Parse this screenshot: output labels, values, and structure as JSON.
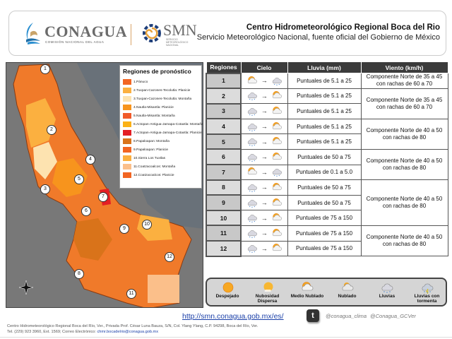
{
  "header": {
    "conagua_logo": "CONAGUA",
    "conagua_sub": "COMISIÓN NACIONAL DEL AGUA",
    "smn_logo": "SMN",
    "smn_sub": "SERVICIO METEOROLÓGICO NACIONAL",
    "title": "Centro Hidrometeorológico Regional Boca del Rio",
    "subtitle": "Servicio Meteorológico Nacional, fuente oficial del Gobierno de México"
  },
  "map_legend": {
    "title": "Regiones de pronóstico",
    "items": [
      {
        "label": "1.Pánuco",
        "color": "#f26522"
      },
      {
        "label": "2.Tuxpan-Cazones-Tecolutla: Planicie",
        "color": "#fbb040"
      },
      {
        "label": "3.Tuxpan-Cazones-Tecolutla: Montaña",
        "color": "#fde3b0"
      },
      {
        "label": "4.Nautla-Misantla: Planicie",
        "color": "#f7941d"
      },
      {
        "label": "5.Nautla-Misantla: Montaña",
        "color": "#f15a29"
      },
      {
        "label": "6.Actopan-Antigua-Jamapa-Cotaxtla: Montaña",
        "color": "#fbb117"
      },
      {
        "label": "7.Actopan-Antigua-Jamapa-Cotaxtla: Planicie",
        "color": "#e31e24"
      },
      {
        "label": "8.Papaloapan: Montaña",
        "color": "#d9731a"
      },
      {
        "label": "9.Papaloapan: Planicie",
        "color": "#f26522"
      },
      {
        "label": "10.Sierra Los Tuxtlas",
        "color": "#fbb040"
      },
      {
        "label": "11.Coatzacoalcos: Montaña",
        "color": "#fbbf8a"
      },
      {
        "label": "12.Coatzacoalcos: Planicie",
        "color": "#f26522"
      }
    ]
  },
  "table": {
    "headers": [
      "Regiones",
      "Cielo",
      "Lluvia (mm)",
      "Viento (km/h)"
    ],
    "rows": [
      {
        "region": "1",
        "sky_from": "medio-nublado",
        "sky_to": "lluvias",
        "rain": "Puntuales de 5.1 a 25"
      },
      {
        "region": "2",
        "sky_from": "lluvias",
        "sky_to": "medio-nublado",
        "rain": "Puntuales de 5.1 a 25"
      },
      {
        "region": "3",
        "sky_from": "lluvias",
        "sky_to": "medio-nublado",
        "rain": "Puntuales de 5.1 a 25"
      },
      {
        "region": "4",
        "sky_from": "lluvias",
        "sky_to": "medio-nublado",
        "rain": "Puntuales de 5.1 a 25"
      },
      {
        "region": "5",
        "sky_from": "lluvias",
        "sky_to": "medio-nublado",
        "rain": "Puntuales de 5.1 a 25"
      },
      {
        "region": "6",
        "sky_from": "lluvias",
        "sky_to": "medio-nublado",
        "rain": "Puntuales de 50 a 75"
      },
      {
        "region": "7",
        "sky_from": "medio-nublado",
        "sky_to": "lluvias",
        "rain": "Puntuales de 0.1 a 5.0"
      },
      {
        "region": "8",
        "sky_from": "lluvias",
        "sky_to": "medio-nublado",
        "rain": "Puntuales de 50 a 75"
      },
      {
        "region": "9",
        "sky_from": "lluvias",
        "sky_to": "medio-nublado",
        "rain": "Puntuales de 50 a 75"
      },
      {
        "region": "10",
        "sky_from": "lluvias",
        "sky_to": "medio-nublado",
        "rain": "Puntuales de 75 a 150"
      },
      {
        "region": "11",
        "sky_from": "lluvias",
        "sky_to": "medio-nublado",
        "rain": "Puntuales de 75 a 150"
      },
      {
        "region": "12",
        "sky_from": "lluvias",
        "sky_to": "medio-nublado",
        "rain": "Puntuales de 75 a 150"
      }
    ],
    "wind": [
      {
        "text": "Componente Norte de 35 a 45 con rachas de 60 a 70",
        "rows": 1
      },
      {
        "text": "Componente Norte de 35 a 45 con rachas de 60 a 70",
        "rows": 2
      },
      {
        "text": "Componente Norte de 40 a 50 con rachas de 80",
        "rows": 2
      },
      {
        "text": "Componente Norte de 40 a 50 con rachas de 80",
        "rows": 2
      },
      {
        "text": "Componente Norte de 40 a 50 con rachas de 80",
        "rows": 3
      },
      {
        "text": "Componente Norte de 40 a 50 con rachas de 80",
        "rows": 2
      }
    ]
  },
  "sky_legend": [
    {
      "icon": "despejado",
      "label": "Despejado"
    },
    {
      "icon": "nubosidad-dispersa",
      "label": "Nubosidad Dispersa"
    },
    {
      "icon": "medio-nublado",
      "label": "Medio Nublado"
    },
    {
      "icon": "nublado",
      "label": "Nublado"
    },
    {
      "icon": "lluvias",
      "label": "Lluvias"
    },
    {
      "icon": "lluvias-tormenta",
      "label": "Lluvias con tormenta"
    }
  ],
  "footer": {
    "url": "http://smn.conagua.gob.mx/es/",
    "twitter_1": "@conagua_clima",
    "twitter_2": "@Conagua_GCVer",
    "address": "Centro Hidrometeorológico Regional Boca del Río, Ver., Privada Prof. César Luna Bauza, S/N, Col. Ylang Ylang, C.P. 94298, Boca del Río, Ver.",
    "phone": "Tel. (229) 923 3960, Ext. 1569; Correo Electrónico: ",
    "email": "chmr.bocadelrio@conagua.gob.mx"
  }
}
